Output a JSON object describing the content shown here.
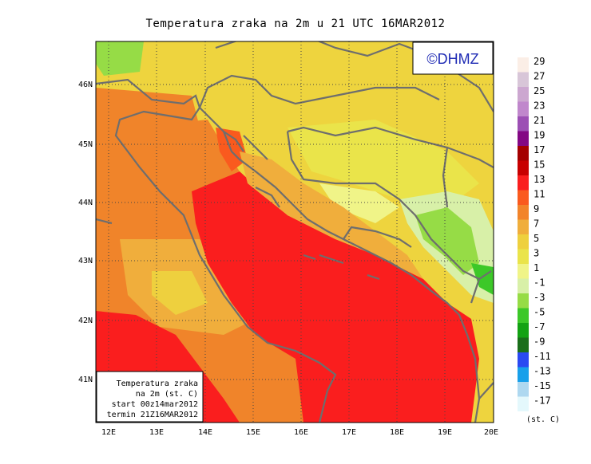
{
  "title": "Temperatura zraka na 2m u 21 UTC 16MAR2012",
  "watermark": "©DHMZ",
  "info_box": {
    "line1": "Temperatura zraka",
    "line2": "na 2m (st. C)",
    "line3": "start 00z14mar2012",
    "line4": "termin 21Z16MAR2012"
  },
  "lat_labels": [
    "46N",
    "45N",
    "44N",
    "43N",
    "42N",
    "41N"
  ],
  "lon_labels": [
    "12E",
    "13E",
    "14E",
    "15E",
    "16E",
    "17E",
    "18E",
    "19E",
    "20E"
  ],
  "legend": {
    "unit": "(st. C)",
    "labels": [
      "29",
      "27",
      "25",
      "23",
      "21",
      "19",
      "17",
      "15",
      "13",
      "11",
      "9",
      "7",
      "5",
      "3",
      "1",
      "-1",
      "-3",
      "-5",
      "-7",
      "-9",
      "-11",
      "-13",
      "-15",
      "-17"
    ],
    "colors": [
      "#fbeee6",
      "#d8c6d8",
      "#cca7d0",
      "#c087cc",
      "#9c4fb4",
      "#830784",
      "#a40000",
      "#c80000",
      "#fa1e1e",
      "#fa5a1e",
      "#f2842a",
      "#f0ae3c",
      "#eed03e",
      "#eae44a",
      "#f0f488",
      "#d8f0a8",
      "#96dc46",
      "#3cc828",
      "#13a213",
      "#1a6e1a",
      "#2a49f2",
      "#18a0ea",
      "#aed8f0",
      "#e4f8fc"
    ]
  },
  "colors": {
    "land_border": "#6e6e6e",
    "sea_warm": "#fa1e1e",
    "coast_orange": "#f0842a",
    "inland_yellow": "#eed43e",
    "cold_green": "#96dc46"
  }
}
